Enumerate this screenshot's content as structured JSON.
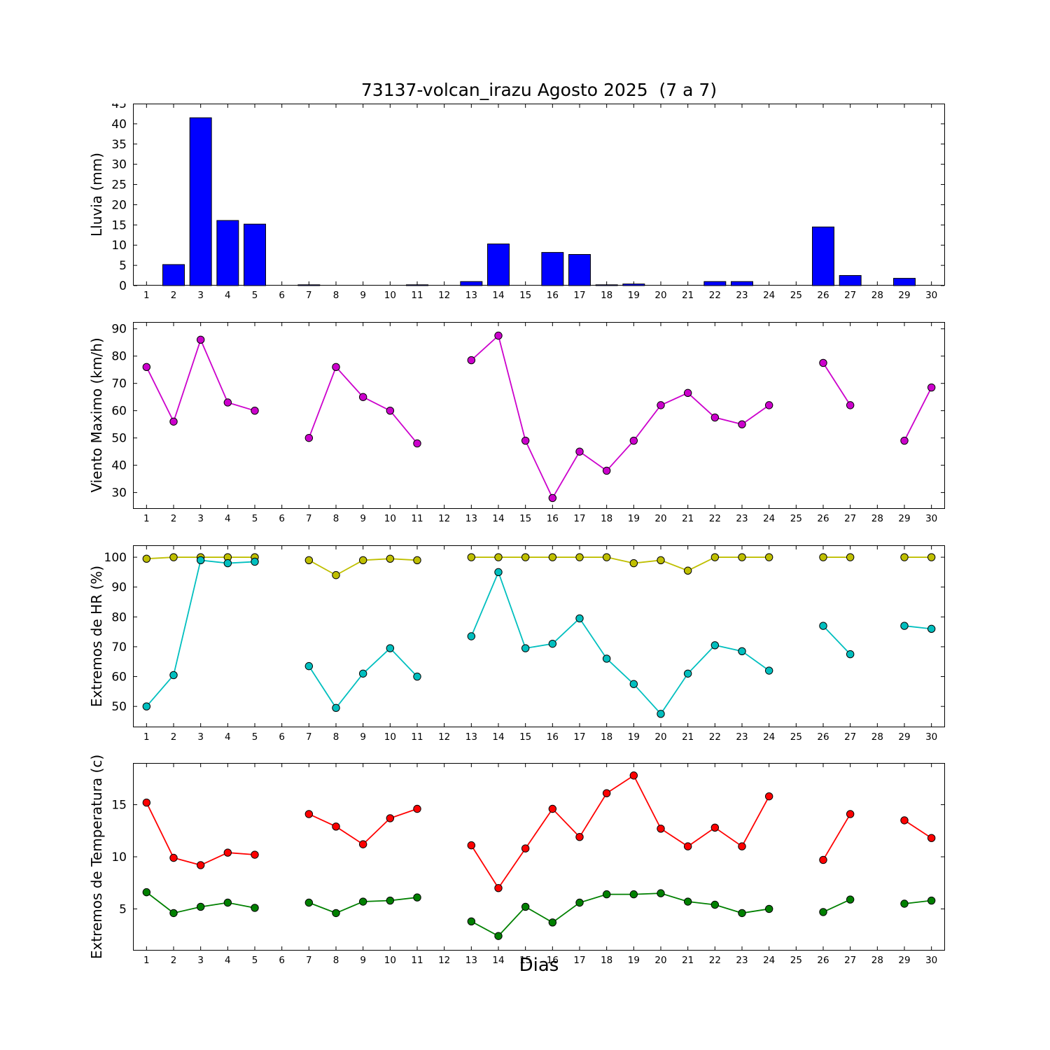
{
  "figure": {
    "title": "73137-volcan_irazu Agosto 2025  (7 a 7)",
    "xlabel": "Dias",
    "days": [
      1,
      2,
      3,
      4,
      5,
      6,
      7,
      8,
      9,
      10,
      11,
      12,
      13,
      14,
      15,
      16,
      17,
      18,
      19,
      20,
      21,
      22,
      23,
      24,
      25,
      26,
      27,
      28,
      29,
      30
    ]
  },
  "chart_data": [
    {
      "id": "lluvia",
      "type": "bar",
      "ylabel": "Lluvia (mm)",
      "xlim": [
        0.5,
        30.5
      ],
      "ylim": [
        0,
        45
      ],
      "yticks": [
        0,
        5,
        10,
        15,
        20,
        25,
        30,
        35,
        40,
        45
      ],
      "bar_color": "#0000ff",
      "bar_edge_color": "#000000",
      "categories": [
        1,
        2,
        3,
        4,
        5,
        6,
        7,
        8,
        9,
        10,
        11,
        12,
        13,
        14,
        15,
        16,
        17,
        18,
        19,
        20,
        21,
        22,
        23,
        24,
        25,
        26,
        27,
        28,
        29,
        30
      ],
      "values": [
        0,
        5.2,
        41.5,
        16.1,
        15.2,
        0,
        0.2,
        0,
        0,
        0,
        0.2,
        0,
        1.0,
        10.3,
        0,
        8.2,
        7.7,
        0.2,
        0.4,
        0,
        0,
        1.0,
        1.0,
        0,
        0,
        14.5,
        2.5,
        0,
        1.8,
        0
      ]
    },
    {
      "id": "viento",
      "type": "line",
      "ylabel": "Viento Maximo (km/h)",
      "xlim": [
        0.5,
        30.5
      ],
      "ylim": [
        24,
        92.5
      ],
      "yticks": [
        30,
        40,
        50,
        60,
        70,
        80,
        90
      ],
      "x": [
        1,
        2,
        3,
        4,
        5,
        6,
        7,
        8,
        9,
        10,
        11,
        12,
        13,
        14,
        15,
        16,
        17,
        18,
        19,
        20,
        21,
        22,
        23,
        24,
        25,
        26,
        27,
        28,
        29,
        30
      ],
      "series": [
        {
          "name": "viento-maximo",
          "color": "#cc00cc",
          "values": [
            76,
            56,
            86,
            63,
            60,
            null,
            50,
            76,
            65,
            60,
            48,
            null,
            78.5,
            87.5,
            49,
            28,
            45,
            38,
            49,
            62,
            66.5,
            57.5,
            55,
            62,
            null,
            77.5,
            62,
            null,
            49,
            68.5
          ]
        }
      ]
    },
    {
      "id": "hr",
      "type": "line",
      "ylabel": "Extremos de HR (%)",
      "xlim": [
        0.5,
        30.5
      ],
      "ylim": [
        43,
        104
      ],
      "yticks": [
        50,
        60,
        70,
        80,
        90,
        100
      ],
      "x": [
        1,
        2,
        3,
        4,
        5,
        6,
        7,
        8,
        9,
        10,
        11,
        12,
        13,
        14,
        15,
        16,
        17,
        18,
        19,
        20,
        21,
        22,
        23,
        24,
        25,
        26,
        27,
        28,
        29,
        30
      ],
      "series": [
        {
          "name": "hr-maxima",
          "color": "#bfbf00",
          "values": [
            99.5,
            100,
            100,
            100,
            100,
            null,
            99,
            94,
            99,
            99.5,
            99,
            null,
            100,
            100,
            100,
            100,
            100,
            100,
            98,
            99,
            95.5,
            100,
            100,
            100,
            null,
            100,
            100,
            null,
            100,
            100
          ]
        },
        {
          "name": "hr-minima",
          "color": "#00bfbf",
          "values": [
            50,
            60.5,
            99,
            98,
            98.5,
            null,
            63.5,
            49.5,
            61,
            69.5,
            60,
            null,
            73.5,
            95,
            69.5,
            71,
            79.5,
            66,
            57.5,
            47.5,
            61,
            70.5,
            68.5,
            62,
            null,
            77,
            67.5,
            null,
            77,
            76
          ]
        }
      ]
    },
    {
      "id": "temperatura",
      "type": "line",
      "ylabel": "Extremos de Temperatura (c)",
      "xlim": [
        0.5,
        30.5
      ],
      "ylim": [
        1,
        19
      ],
      "yticks": [
        5,
        10,
        15
      ],
      "x": [
        1,
        2,
        3,
        4,
        5,
        6,
        7,
        8,
        9,
        10,
        11,
        12,
        13,
        14,
        15,
        16,
        17,
        18,
        19,
        20,
        21,
        22,
        23,
        24,
        25,
        26,
        27,
        28,
        29,
        30
      ],
      "series": [
        {
          "name": "temperatura-maxima",
          "color": "#ff0000",
          "values": [
            15.2,
            9.9,
            9.2,
            10.4,
            10.2,
            null,
            14.1,
            12.9,
            11.2,
            13.7,
            14.6,
            null,
            11.1,
            7.0,
            10.8,
            14.6,
            11.9,
            16.1,
            17.8,
            12.7,
            11.0,
            12.8,
            11.0,
            15.8,
            null,
            9.7,
            14.1,
            null,
            13.5,
            11.8
          ]
        },
        {
          "name": "temperatura-minima",
          "color": "#008000",
          "values": [
            6.6,
            4.6,
            5.2,
            5.6,
            5.1,
            null,
            5.6,
            4.6,
            5.7,
            5.8,
            6.1,
            null,
            3.8,
            2.4,
            5.2,
            3.7,
            5.6,
            6.4,
            6.4,
            6.5,
            5.7,
            5.4,
            4.6,
            5.0,
            null,
            4.7,
            5.9,
            null,
            5.5,
            5.8
          ]
        }
      ]
    }
  ]
}
